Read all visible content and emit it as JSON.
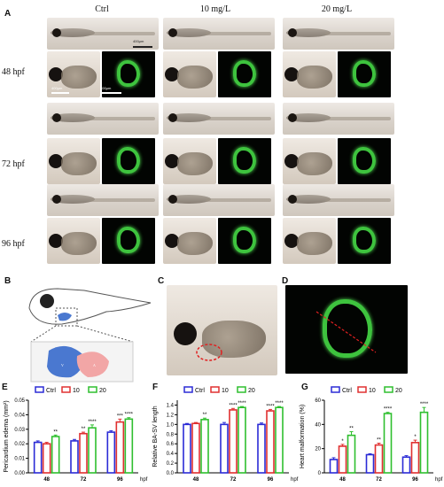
{
  "panel_labels": {
    "a": "A",
    "b": "B",
    "c": "C",
    "d": "D",
    "e": "E",
    "f": "F",
    "g": "G"
  },
  "columns": [
    "Ctrl",
    "10 mg/L",
    "20 mg/L"
  ],
  "rows": [
    "48 hpf",
    "72 hpf",
    "96 hpf"
  ],
  "scale_bars": {
    "whole": "400μm",
    "close": "400μm",
    "fluo": "400μm"
  },
  "colors": {
    "ctrl": "#2b2bd6",
    "c10": "#e03030",
    "c20": "#2fbf2f"
  },
  "chart_data": [
    {
      "type": "bar",
      "ylabel": "Pericardium edema (mm²)",
      "xlabel": "hpf",
      "categories": [
        "48",
        "72",
        "96"
      ],
      "ylim": [
        0,
        0.05
      ],
      "yticks": [
        0.0,
        0.01,
        0.02,
        0.03,
        0.04,
        0.05
      ],
      "legend": [
        "Ctrl",
        "10",
        "20"
      ],
      "series": [
        {
          "name": "Ctrl",
          "values": [
            0.021,
            0.022,
            0.028
          ],
          "err": [
            0.001,
            0.001,
            0.001
          ]
        },
        {
          "name": "10",
          "values": [
            0.02,
            0.027,
            0.035
          ],
          "err": [
            0.001,
            0.001,
            0.002
          ]
        },
        {
          "name": "20",
          "values": [
            0.025,
            0.031,
            0.037
          ],
          "err": [
            0.001,
            0.002,
            0.001
          ]
        }
      ],
      "stars": [
        [
          "",
          "",
          "**"
        ],
        [
          "",
          "**",
          "****"
        ],
        [
          "",
          "***",
          "****"
        ]
      ]
    },
    {
      "type": "bar",
      "ylabel": "Relative BA-SV length",
      "xlabel": "hpf",
      "categories": [
        "48",
        "72",
        "96"
      ],
      "ylim": [
        0,
        1.5
      ],
      "yticks": [
        0.0,
        0.2,
        0.4,
        0.6,
        0.8,
        1.0,
        1.2,
        1.4
      ],
      "legend": [
        "Ctrl",
        "10",
        "20"
      ],
      "series": [
        {
          "name": "Ctrl",
          "values": [
            1.0,
            1.0,
            1.0
          ],
          "err": [
            0.02,
            0.04,
            0.03
          ]
        },
        {
          "name": "10",
          "values": [
            1.02,
            1.3,
            1.28
          ],
          "err": [
            0.02,
            0.03,
            0.03
          ]
        },
        {
          "name": "20",
          "values": [
            1.1,
            1.35,
            1.35
          ],
          "err": [
            0.03,
            0.02,
            0.02
          ]
        }
      ],
      "stars": [
        [
          "",
          "",
          "**"
        ],
        [
          "",
          "****",
          "****"
        ],
        [
          "",
          "****",
          "****"
        ]
      ]
    },
    {
      "type": "bar",
      "ylabel": "Heart malformation (%)",
      "xlabel": "hpf",
      "categories": [
        "48",
        "72",
        "96"
      ],
      "ylim": [
        0,
        60
      ],
      "yticks": [
        0,
        20,
        40,
        60
      ],
      "legend": [
        "Ctrl",
        "10",
        "20"
      ],
      "series": [
        {
          "name": "Ctrl",
          "values": [
            11,
            15,
            13
          ],
          "err": [
            1.5,
            0.8,
            1.2
          ]
        },
        {
          "name": "10",
          "values": [
            22,
            23,
            25
          ],
          "err": [
            1.5,
            1.5,
            2
          ]
        },
        {
          "name": "20",
          "values": [
            31,
            49,
            50
          ],
          "err": [
            3,
            1,
            4
          ]
        }
      ],
      "stars": [
        [
          "",
          "*",
          "**"
        ],
        [
          "",
          "**",
          "****"
        ],
        [
          "",
          "*",
          "****"
        ]
      ]
    }
  ]
}
